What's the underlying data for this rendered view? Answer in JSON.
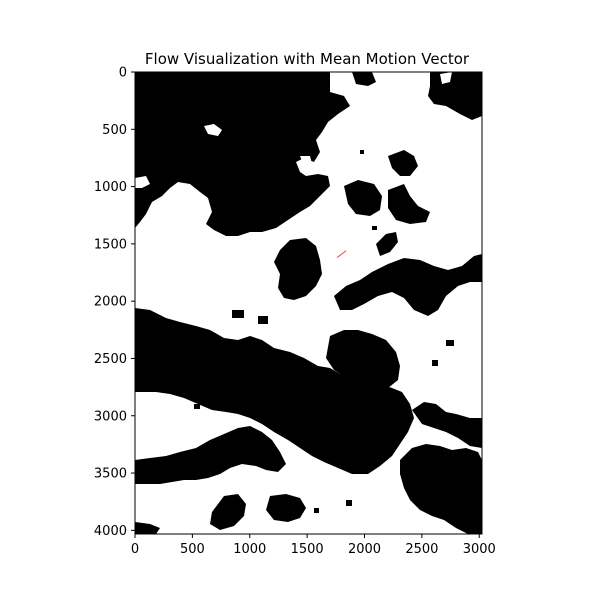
{
  "chart_data": {
    "type": "image",
    "title": "Flow Visualization with Mean Motion Vector",
    "xlabel": "",
    "ylabel": "",
    "xlim": [
      0,
      3024
    ],
    "ylim": [
      4032,
      0
    ],
    "xticks": [
      0,
      500,
      1000,
      1500,
      2000,
      2500,
      3000
    ],
    "yticks": [
      0,
      500,
      1000,
      1500,
      2000,
      2500,
      3000,
      3500,
      4000
    ],
    "image_colors": {
      "background": "#ffffff",
      "foreground": "#000000"
    },
    "motion_vector": {
      "color": "#ff3b3b",
      "x": [
        1760,
        1840
      ],
      "y": [
        1620,
        1560
      ]
    }
  }
}
